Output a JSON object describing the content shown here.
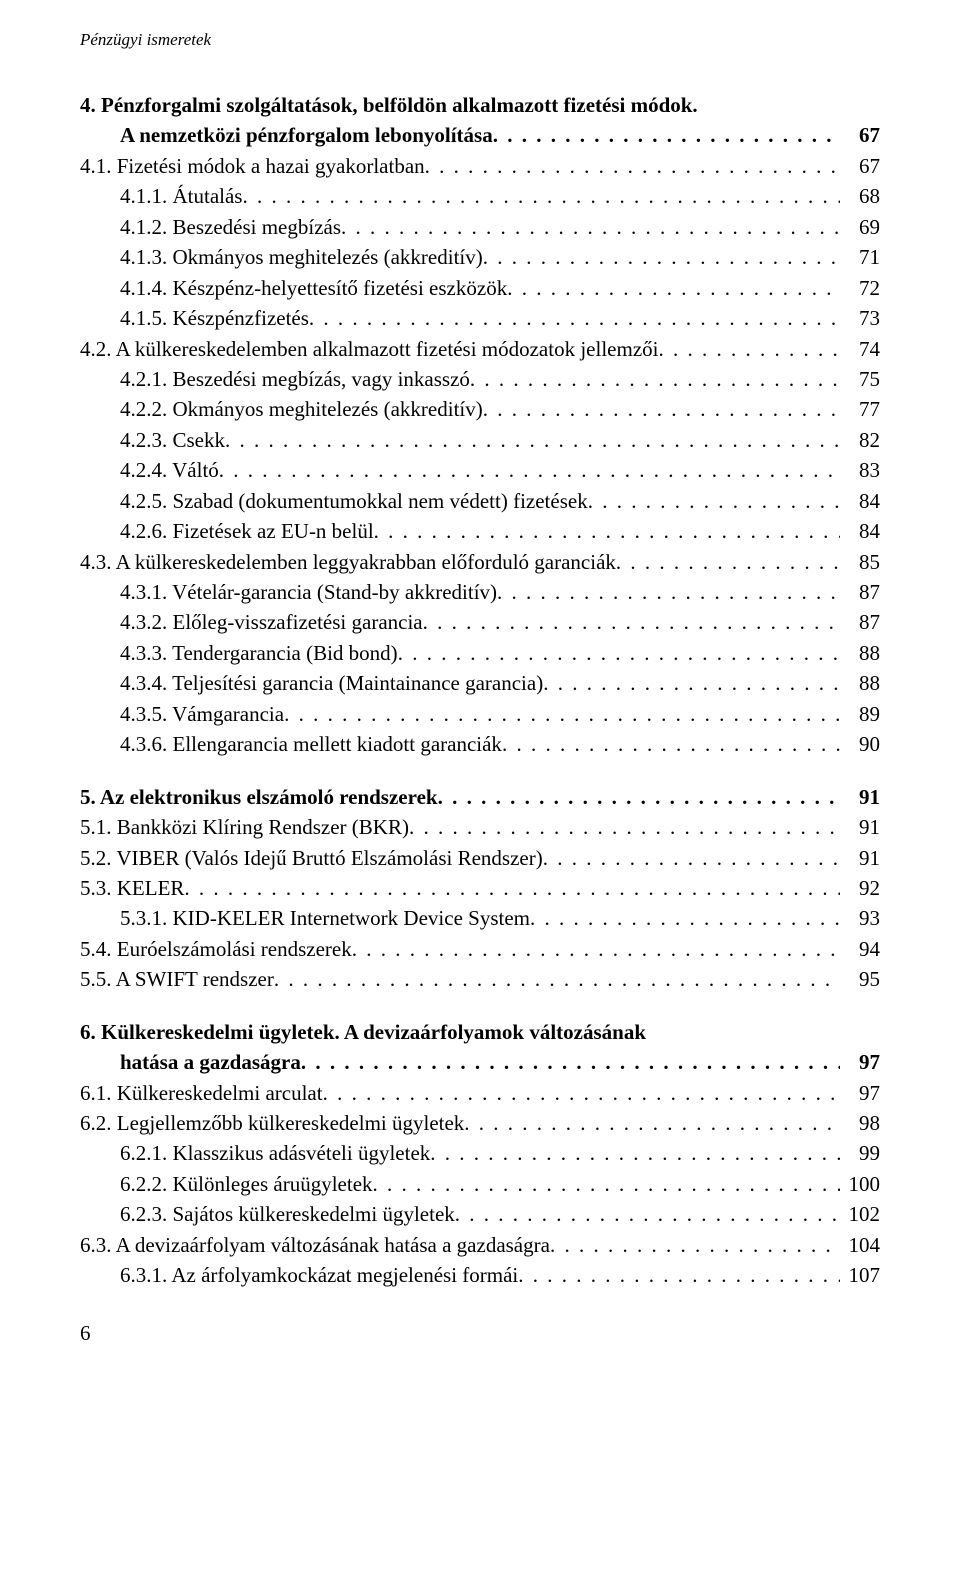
{
  "running_header": "Pénzügyi ismeretek",
  "page_number": "6",
  "toc": [
    {
      "type": "entry",
      "indent": 0,
      "bold": true,
      "hanging": true,
      "lines": [
        "4. Pénzforgalmi szolgáltatások, belföldön alkalmazott fizetési módok.",
        "A nemzetközi pénzforgalom lebonyolítása"
      ],
      "page": "67"
    },
    {
      "type": "entry",
      "indent": 0,
      "label": "4.1. Fizetési módok a hazai gyakorlatban",
      "page": "67"
    },
    {
      "type": "entry",
      "indent": 1,
      "label": "4.1.1. Átutalás",
      "page": "68"
    },
    {
      "type": "entry",
      "indent": 1,
      "label": "4.1.2. Beszedési megbízás",
      "page": "69"
    },
    {
      "type": "entry",
      "indent": 1,
      "label": "4.1.3. Okmányos meghitelezés (akkreditív)",
      "page": "71"
    },
    {
      "type": "entry",
      "indent": 1,
      "label": "4.1.4. Készpénz-helyettesítő fizetési eszközök",
      "page": "72"
    },
    {
      "type": "entry",
      "indent": 1,
      "label": "4.1.5. Készpénzfizetés",
      "page": "73"
    },
    {
      "type": "entry",
      "indent": 0,
      "label": "4.2. A külkereskedelemben alkalmazott fizetési módozatok jellemzői",
      "page": "74"
    },
    {
      "type": "entry",
      "indent": 1,
      "label": "4.2.1. Beszedési megbízás, vagy inkasszó",
      "page": "75"
    },
    {
      "type": "entry",
      "indent": 1,
      "label": "4.2.2. Okmányos meghitelezés (akkreditív)",
      "page": "77"
    },
    {
      "type": "entry",
      "indent": 1,
      "label": "4.2.3. Csekk",
      "page": "82"
    },
    {
      "type": "entry",
      "indent": 1,
      "label": "4.2.4. Váltó",
      "page": "83"
    },
    {
      "type": "entry",
      "indent": 1,
      "label": "4.2.5. Szabad (dokumentumokkal nem védett) fizetések",
      "page": "84"
    },
    {
      "type": "entry",
      "indent": 1,
      "label": "4.2.6. Fizetések az EU-n belül",
      "page": "84"
    },
    {
      "type": "entry",
      "indent": 0,
      "label": "4.3. A külkereskedelemben leggyakrabban előforduló garanciák",
      "page": "85"
    },
    {
      "type": "entry",
      "indent": 1,
      "label": "4.3.1. Vételár-garancia (Stand-by akkreditív)",
      "page": "87"
    },
    {
      "type": "entry",
      "indent": 1,
      "label": "4.3.2. Előleg-visszafizetési garancia",
      "page": "87"
    },
    {
      "type": "entry",
      "indent": 1,
      "label": "4.3.3. Tendergarancia (Bid bond)",
      "page": "88"
    },
    {
      "type": "entry",
      "indent": 1,
      "label": "4.3.4. Teljesítési garancia (Maintainance garancia)",
      "page": "88"
    },
    {
      "type": "entry",
      "indent": 1,
      "label": "4.3.5. Vámgarancia",
      "page": "89"
    },
    {
      "type": "entry",
      "indent": 1,
      "label": "4.3.6. Ellengarancia mellett kiadott garanciák",
      "page": "90"
    },
    {
      "type": "gap"
    },
    {
      "type": "entry",
      "indent": 0,
      "bold": true,
      "label": "5. Az elektronikus elszámoló rendszerek",
      "page": "91"
    },
    {
      "type": "entry",
      "indent": 0,
      "label": "5.1. Bankközi Klíring Rendszer (BKR)",
      "page": "91"
    },
    {
      "type": "entry",
      "indent": 0,
      "label": "5.2. VIBER (Valós Idejű Bruttó Elszámolási Rendszer)",
      "page": "91"
    },
    {
      "type": "entry",
      "indent": 0,
      "label": "5.3. KELER",
      "page": "92"
    },
    {
      "type": "entry",
      "indent": 1,
      "label": "5.3.1. KID-KELER Internetwork Device System",
      "page": "93"
    },
    {
      "type": "entry",
      "indent": 0,
      "label": "5.4. Euróelszámolási rendszerek",
      "page": "94"
    },
    {
      "type": "entry",
      "indent": 0,
      "label": "5.5. A SWIFT rendszer",
      "page": "95"
    },
    {
      "type": "gap"
    },
    {
      "type": "entry",
      "indent": 0,
      "bold": true,
      "hanging": true,
      "lines": [
        "6. Külkereskedelmi ügyletek. A devizaárfolyamok változásának",
        "hatása a gazdaságra"
      ],
      "page": "97"
    },
    {
      "type": "entry",
      "indent": 0,
      "label": "6.1. Külkereskedelmi arculat",
      "page": "97"
    },
    {
      "type": "entry",
      "indent": 0,
      "label": "6.2. Legjellemzőbb külkereskedelmi ügyletek",
      "page": "98"
    },
    {
      "type": "entry",
      "indent": 1,
      "label": "6.2.1. Klasszikus adásvételi ügyletek",
      "page": "99"
    },
    {
      "type": "entry",
      "indent": 1,
      "label": "6.2.2. Különleges áruügyletek",
      "page": "100"
    },
    {
      "type": "entry",
      "indent": 1,
      "label": "6.2.3. Sajátos külkereskedelmi ügyletek",
      "page": "102"
    },
    {
      "type": "entry",
      "indent": 0,
      "label": "6.3. A devizaárfolyam változásának hatása a gazdaságra",
      "page": "104"
    },
    {
      "type": "entry",
      "indent": 1,
      "label": "6.3.1. Az árfolyamkockázat megjelenési formái",
      "page": "107"
    }
  ]
}
